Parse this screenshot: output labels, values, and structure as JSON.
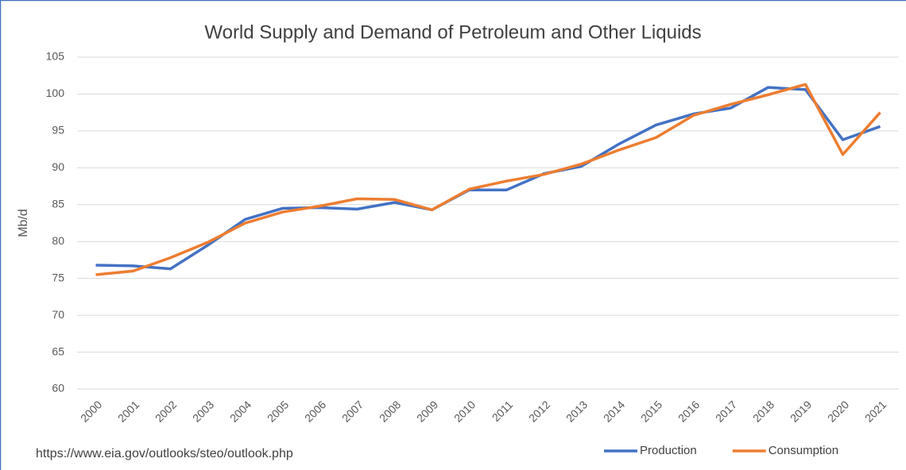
{
  "chart_data": {
    "type": "line",
    "title": "World Supply and Demand of Petroleum and Other Liquids",
    "y_label": "Mb/d",
    "note": "https://www.eia.gov/outlooks/steo/outlook.php",
    "categories": [
      "2000",
      "2001",
      "2002",
      "2003",
      "2004",
      "2005",
      "2006",
      "2007",
      "2008",
      "2009",
      "2010",
      "2011",
      "2012",
      "2013",
      "2014",
      "2015",
      "2016",
      "2017",
      "2018",
      "2019",
      "2020",
      "2021"
    ],
    "series": [
      {
        "name": "Production",
        "color": "#4472c4",
        "values": [
          76.8,
          76.7,
          76.3,
          79.5,
          83.0,
          84.5,
          84.6,
          84.4,
          85.3,
          84.3,
          87.0,
          87.0,
          89.2,
          90.2,
          93.2,
          95.8,
          97.3,
          98.1,
          100.9,
          100.6,
          93.8,
          95.6
        ]
      },
      {
        "name": "Consumption",
        "color": "#ed7d31",
        "values": [
          75.5,
          76.0,
          77.8,
          79.9,
          82.5,
          84.0,
          84.8,
          85.8,
          85.7,
          84.3,
          87.1,
          88.2,
          89.1,
          90.5,
          92.4,
          94.1,
          97.1,
          98.6,
          99.9,
          101.3,
          91.8,
          97.5
        ]
      }
    ],
    "ylim": [
      60,
      105
    ],
    "yticks": [
      60,
      65,
      70,
      75,
      80,
      85,
      90,
      95,
      100,
      105
    ],
    "grid": true,
    "legend": "bottom-right"
  }
}
